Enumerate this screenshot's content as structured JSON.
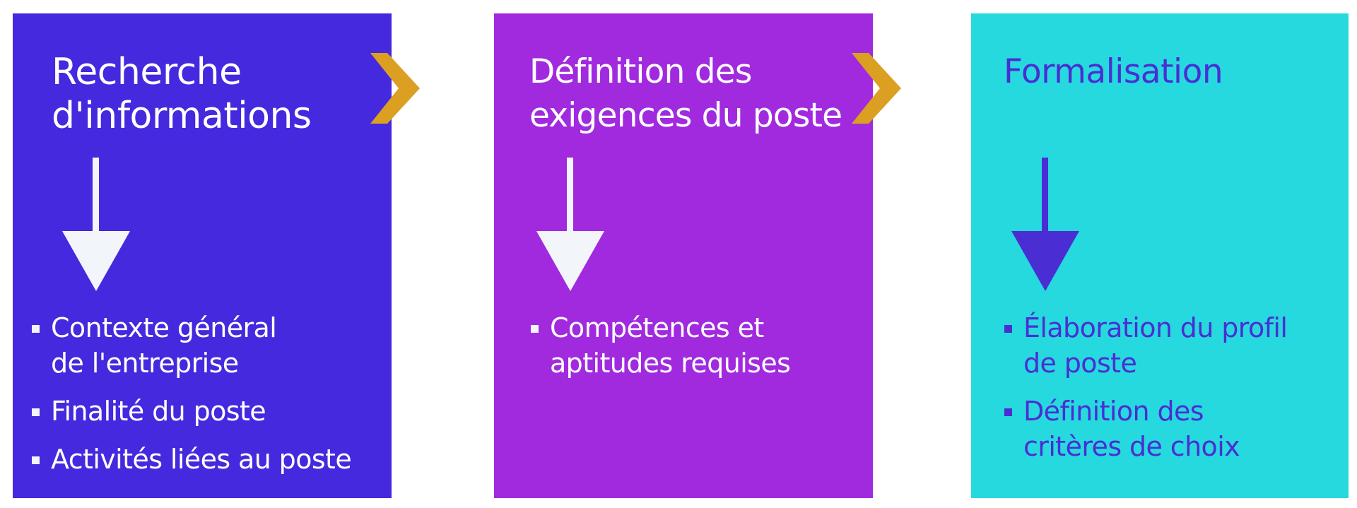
{
  "colors": {
    "panel1": "#4429DE",
    "panel2": "#A12ADF",
    "panel3": "#26D9DF",
    "chevron": "#DBA021",
    "light": "#F2F6FB",
    "dark_accent": "#4A2ED3"
  },
  "panels": [
    {
      "title_lines": [
        "Recherche",
        "d'informations"
      ],
      "bullets": [
        {
          "lines": [
            "Contexte général",
            "de l'entreprise"
          ]
        },
        {
          "lines": [
            "Finalité du poste"
          ]
        },
        {
          "lines": [
            "Activités liées au poste"
          ]
        }
      ]
    },
    {
      "title_lines": [
        "Définition des",
        "exigences du poste"
      ],
      "bullets": [
        {
          "lines": [
            "Compétences et",
            "aptitudes requises"
          ]
        }
      ]
    },
    {
      "title_lines": [
        "Formalisation"
      ],
      "bullets": [
        {
          "lines": [
            "Élaboration du profil",
            "de poste"
          ]
        },
        {
          "lines": [
            "Définition des",
            "critères de choix"
          ]
        }
      ]
    }
  ],
  "connectors": [
    "chevron-right-icon",
    "chevron-right-icon"
  ]
}
